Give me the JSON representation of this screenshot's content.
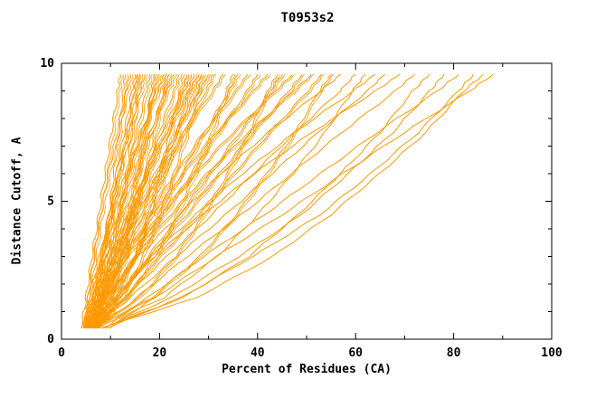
{
  "chart_data": {
    "type": "line",
    "title": "T0953s2",
    "xlabel": "Percent of Residues (CA)",
    "ylabel": "Distance Cutoff, A",
    "xlim": [
      0,
      100
    ],
    "ylim": [
      0,
      10
    ],
    "x_ticks": [
      0,
      20,
      40,
      60,
      80,
      100
    ],
    "y_ticks": [
      0,
      5,
      10
    ],
    "x_minor_step": 10,
    "y_minor_step": 1,
    "grid": false,
    "legend": "none",
    "line_color": "#FF9900",
    "axis_color": "#000000",
    "background": "#FFFFFF",
    "y_levels": [
      0.4,
      1.5,
      3,
      4.5,
      6,
      7.5,
      9,
      9.6
    ],
    "curves": [
      [
        4,
        5,
        6.2,
        7.6,
        8.9,
        10.2,
        11.5,
        12
      ],
      [
        4.4,
        6.6,
        8.3,
        9.6,
        10.7,
        11.7,
        12.6,
        13
      ],
      [
        4.8,
        5.4,
        6.6,
        8,
        9.6,
        11.3,
        13.3,
        14
      ],
      [
        5.2,
        6.4,
        7.9,
        9.6,
        11.2,
        12.8,
        14.4,
        15
      ],
      [
        5.6,
        8.2,
        10.3,
        11.8,
        13.2,
        14.4,
        15.5,
        16
      ],
      [
        6,
        6.7,
        8.1,
        9.9,
        11.7,
        13.8,
        16.1,
        17
      ],
      [
        6.4,
        7.8,
        9.6,
        11.6,
        13.5,
        15.3,
        17.3,
        18
      ],
      [
        6.8,
        9.9,
        12.3,
        14.1,
        15.7,
        17.2,
        18.4,
        19
      ],
      [
        4.2,
        6.1,
        8.6,
        11.3,
        13.8,
        16.4,
        19.1,
        20
      ],
      [
        4.6,
        5.6,
        7.7,
        10.3,
        13.1,
        16.2,
        19.7,
        21
      ],
      [
        5,
        9.1,
        12.4,
        14.9,
        17,
        19,
        20.7,
        21.5
      ],
      [
        5.4,
        7.4,
        10,
        12.9,
        15.5,
        18.2,
        21,
        22
      ],
      [
        5.8,
        6.8,
        9.1,
        11.8,
        14.7,
        18,
        21.6,
        23
      ],
      [
        6.2,
        8.3,
        11.2,
        14.2,
        17.1,
        19.9,
        22.9,
        24
      ],
      [
        6.6,
        11.2,
        14.9,
        17.6,
        20,
        22.2,
        24.1,
        25
      ],
      [
        7,
        8.1,
        10.6,
        13.7,
        16.9,
        20.5,
        24.5,
        26
      ],
      [
        4.5,
        7.1,
        10.7,
        14.4,
        17.9,
        21.4,
        25.2,
        26.5
      ],
      [
        5,
        10.5,
        14.9,
        18.2,
        21.1,
        23.7,
        25.9,
        27
      ],
      [
        5.5,
        6.9,
        9.8,
        13.4,
        17.2,
        21.5,
        26.2,
        28
      ],
      [
        6,
        8.7,
        12.3,
        16.1,
        19.7,
        23.3,
        27.2,
        28.5
      ],
      [
        6.5,
        12.1,
        16.6,
        20,
        22.9,
        25.6,
        27.9,
        29
      ],
      [
        7,
        8.4,
        11.4,
        15.1,
        19,
        23.3,
        28.2,
        30
      ],
      [
        5.2,
        8.7,
        11.4,
        13.5,
        15.3,
        16.9,
        18.3,
        19
      ],
      [
        6,
        7.1,
        8.7,
        10.3,
        11.8,
        13.3,
        14.9,
        15.5
      ],
      [
        5,
        8.1,
        12.3,
        16.7,
        20.9,
        25,
        29.4,
        31
      ],
      [
        5.5,
        7.2,
        10.7,
        15.1,
        19.8,
        25,
        30.8,
        33
      ],
      [
        6,
        13.3,
        19.1,
        23.4,
        27.2,
        30.7,
        33.6,
        35
      ],
      [
        6.5,
        10,
        14.8,
        19.8,
        24.5,
        29.2,
        34.2,
        36
      ],
      [
        7,
        8.9,
        12.9,
        17.9,
        23.1,
        29,
        35.5,
        38
      ],
      [
        5.2,
        9.4,
        14.9,
        20.9,
        26.4,
        32,
        37.9,
        40
      ],
      [
        5.8,
        8,
        12.7,
        18.5,
        24.6,
        31.5,
        39.1,
        42
      ],
      [
        6.4,
        15.8,
        23.3,
        29,
        33.8,
        38.4,
        42.1,
        44
      ],
      [
        7,
        11.6,
        17.6,
        24.1,
        30.2,
        36.3,
        42.7,
        45
      ],
      [
        5.5,
        8,
        13.4,
        20,
        27.1,
        35,
        43.7,
        47
      ],
      [
        6,
        11.2,
        18,
        25.4,
        32.2,
        39.1,
        46.4,
        49
      ],
      [
        6.6,
        9.3,
        15,
        22.1,
        29.7,
        38.1,
        47.4,
        51
      ],
      [
        7.2,
        12.7,
        20,
        27.8,
        35.1,
        42.5,
        50.3,
        53
      ],
      [
        6.2,
        18.4,
        28.2,
        35.5,
        41.8,
        47.7,
        52.6,
        55
      ],
      [
        6,
        9.1,
        15.7,
        23.9,
        32.5,
        42.2,
        52.9,
        57
      ],
      [
        6.5,
        12.9,
        21.5,
        30.6,
        39.1,
        47.7,
        56.8,
        60
      ],
      [
        7,
        20.8,
        31.8,
        40,
        47.2,
        53.8,
        59.3,
        62
      ],
      [
        7.5,
        10.9,
        18.2,
        27.3,
        36.9,
        47.6,
        59.5,
        64
      ],
      [
        6.8,
        13.9,
        23.4,
        33.4,
        42.9,
        52.4,
        62.4,
        66
      ],
      [
        7.2,
        10.9,
        18.9,
        28.8,
        39.3,
        51.1,
        64.1,
        69
      ],
      [
        7.6,
        15.3,
        25.6,
        36.6,
        46.9,
        57.2,
        68.1,
        72
      ],
      [
        8,
        24.8,
        38.2,
        48.2,
        56.9,
        65,
        71.7,
        75
      ],
      [
        8.4,
        22.3,
        36.2,
        48.8,
        58.5,
        67.6,
        75.2,
        78
      ],
      [
        8.8,
        17.5,
        29,
        41.3,
        52.8,
        64.4,
        76.7,
        81
      ],
      [
        9.2,
        24.2,
        39.1,
        52.6,
        63.1,
        72.8,
        81,
        84
      ],
      [
        9.6,
        19,
        31.6,
        44.9,
        57.4,
        70,
        83.3,
        88
      ],
      [
        8,
        27.5,
        43.1,
        54.8,
        64.9,
        74.3,
        82.1,
        86
      ]
    ]
  }
}
